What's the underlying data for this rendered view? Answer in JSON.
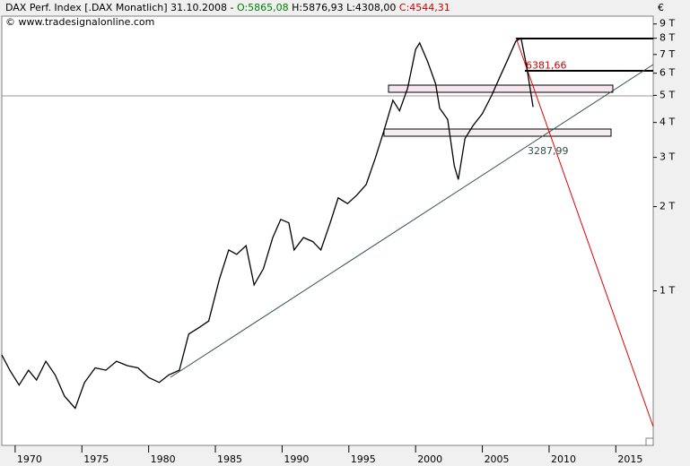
{
  "chart_data": {
    "type": "line",
    "header": {
      "name": "DAX Perf. Index [.DAX Monatlich] 31.10.2008 -",
      "open": "O:5865,08",
      "high": "H:5876,93",
      "low": "L:4308,00",
      "close": "C:4544,31"
    },
    "source": "© www.tradesignalonline.com",
    "currency": "€",
    "log_scale": true,
    "x": [
      1969.0,
      1969.6,
      1970.3,
      1971.0,
      1971.6,
      1972.3,
      1973.0,
      1973.7,
      1974.5,
      1975.2,
      1976.0,
      1976.8,
      1977.6,
      1978.4,
      1979.2,
      1980.0,
      1980.8,
      1981.5,
      1982.3,
      1983.0,
      1983.8,
      1984.5,
      1985.3,
      1986.0,
      1986.6,
      1987.3,
      1987.9,
      1988.6,
      1989.3,
      1989.9,
      1990.5,
      1990.9,
      1991.6,
      1992.3,
      1992.9,
      1993.6,
      1994.2,
      1994.9,
      1995.6,
      1996.3,
      1997.0,
      1997.6,
      1998.3,
      1998.8,
      1999.4,
      2000.0,
      2000.3,
      2000.9,
      2001.5,
      2001.8,
      2002.4,
      2002.9,
      2003.2,
      2003.7,
      2004.3,
      2005.0,
      2005.7,
      2006.3,
      2006.9,
      2007.5,
      2007.9,
      2008.3,
      2008.8
    ],
    "series": [
      {
        "name": "DAX",
        "color": "#000000",
        "values": [
          590,
          520,
          460,
          520,
          480,
          560,
          500,
          420,
          380,
          470,
          530,
          520,
          560,
          540,
          530,
          490,
          470,
          500,
          520,
          700,
          740,
          780,
          1100,
          1400,
          1350,
          1450,
          1050,
          1200,
          1550,
          1800,
          1750,
          1400,
          1550,
          1500,
          1400,
          1750,
          2150,
          2050,
          2200,
          2400,
          3000,
          3700,
          4800,
          4400,
          5300,
          7300,
          7700,
          6600,
          5500,
          4500,
          4100,
          2800,
          2500,
          3500,
          3900,
          4300,
          5000,
          5800,
          6700,
          7800,
          8000,
          6400,
          4544
        ]
      }
    ],
    "annotations": [
      {
        "value": 6381.66,
        "label": "6381,66"
      },
      {
        "value": 3287.99,
        "label": "3287,99"
      }
    ],
    "xlim": [
      1969,
      2017.8
    ],
    "ylim": [
      280,
      9600
    ],
    "xticks": [
      1970,
      1975,
      1980,
      1985,
      1990,
      1995,
      2000,
      2005,
      2010,
      2015
    ],
    "yticks": [
      {
        "value": 1000,
        "label": "1 T"
      },
      {
        "value": 2000,
        "label": "2 T"
      },
      {
        "value": 3000,
        "label": "3 T"
      },
      {
        "value": 4000,
        "label": "4 T"
      },
      {
        "value": 5000,
        "label": "5 T"
      },
      {
        "value": 6000,
        "label": "6 T"
      },
      {
        "value": 7000,
        "label": "7 T"
      },
      {
        "value": 8000,
        "label": "8 T"
      },
      {
        "value": 9000,
        "label": "9 T"
      }
    ]
  }
}
